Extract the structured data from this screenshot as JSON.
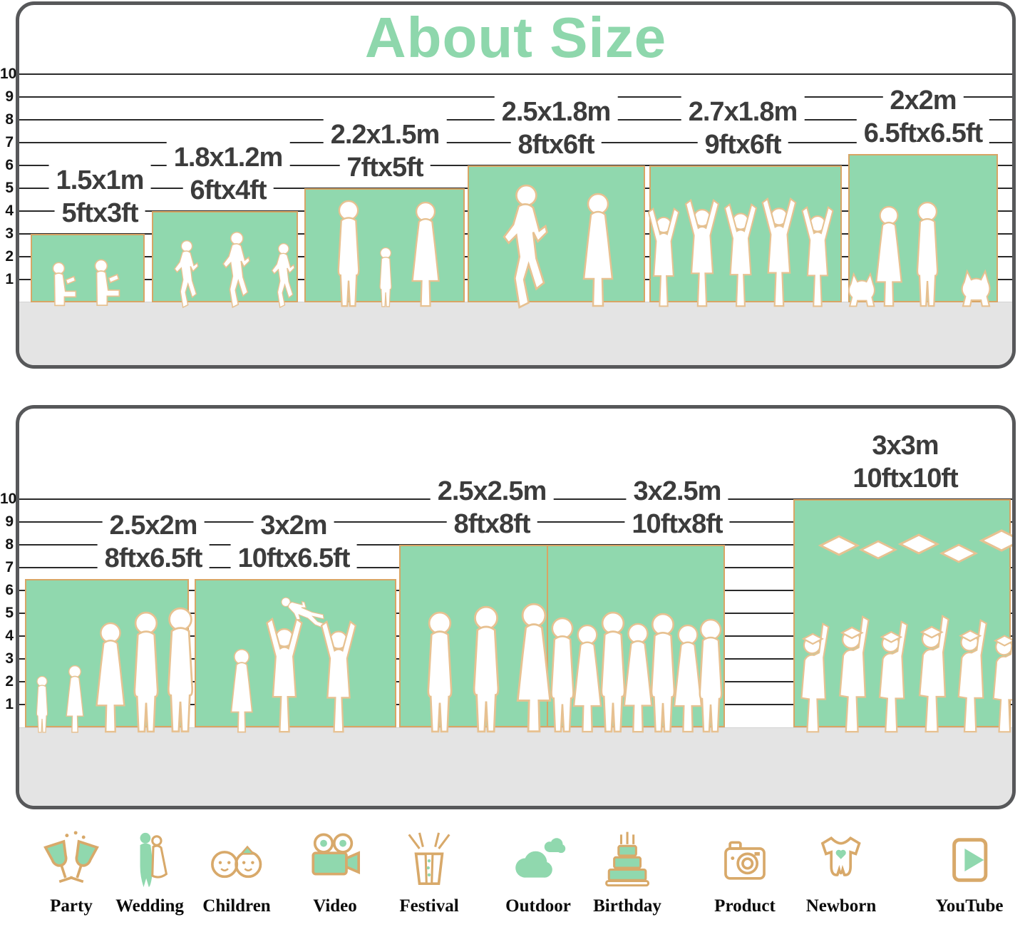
{
  "title": "About Size",
  "axis": {
    "ticks_top_to_bottom": [
      "10",
      "9",
      "8",
      "7",
      "6",
      "5",
      "4",
      "3",
      "2",
      "1"
    ]
  },
  "colors": {
    "accent_green": "#8ed7ac",
    "backdrop_fill": "#90d8ae",
    "backdrop_border": "#d8a565",
    "ground_gray": "#e4e4e4",
    "panel_border": "#57585a",
    "label_text": "#3c3c3c",
    "icon_tan": "#d8a96a"
  },
  "panels": [
    {
      "id": "top",
      "sizes": [
        {
          "metric": "1.5x1m",
          "imperial": "5ftx3ft",
          "height_ft": 3,
          "scene": "children-reading"
        },
        {
          "metric": "1.8x1.2m",
          "imperial": "6ftx4ft",
          "height_ft": 4,
          "scene": "children-running"
        },
        {
          "metric": "2.2x1.5m",
          "imperial": "7ftx5ft",
          "height_ft": 5,
          "scene": "family-holding-hands"
        },
        {
          "metric": "2.5x1.8m",
          "imperial": "8ftx6ft",
          "height_ft": 6,
          "scene": "wedding-couple"
        },
        {
          "metric": "2.7x1.8m",
          "imperial": "9ftx6ft",
          "height_ft": 6,
          "scene": "dancing-party-group"
        },
        {
          "metric": "2x2m",
          "imperial": "6.5ftx6.5ft",
          "height_ft": 6.5,
          "scene": "couple-with-pets"
        }
      ]
    },
    {
      "id": "bottom",
      "sizes": [
        {
          "metric": "2.5x2m",
          "imperial": "8ftx6.5ft",
          "height_ft": 6.5,
          "scene": "family-of-five"
        },
        {
          "metric": "3x2m",
          "imperial": "10ftx6.5ft",
          "height_ft": 6.5,
          "scene": "family-tossing-child"
        },
        {
          "metric": "2.5x2.5m",
          "imperial": "8ftx8ft",
          "height_ft": 8,
          "scene": "three-adults"
        },
        {
          "metric": "3x2.5m",
          "imperial": "10ftx8ft",
          "height_ft": 8,
          "scene": "friends-group"
        },
        {
          "metric": "3x3m",
          "imperial": "10ftx10ft",
          "height_ft": 10,
          "scene": "graduates-throwing-caps"
        }
      ]
    }
  ],
  "categories": [
    {
      "label": "Party",
      "icon": "party-icon"
    },
    {
      "label": "Wedding",
      "icon": "wedding-icon"
    },
    {
      "label": "Children",
      "icon": "children-icon"
    },
    {
      "label": "Video",
      "icon": "video-icon"
    },
    {
      "label": "Festival",
      "icon": "festival-icon"
    },
    {
      "label": "Outdoor",
      "icon": "outdoor-icon"
    },
    {
      "label": "Birthday",
      "icon": "birthday-icon"
    },
    {
      "label": "Product",
      "icon": "product-icon"
    },
    {
      "label": "Newborn",
      "icon": "newborn-icon"
    },
    {
      "label": "YouTube",
      "icon": "youtube-icon"
    }
  ]
}
